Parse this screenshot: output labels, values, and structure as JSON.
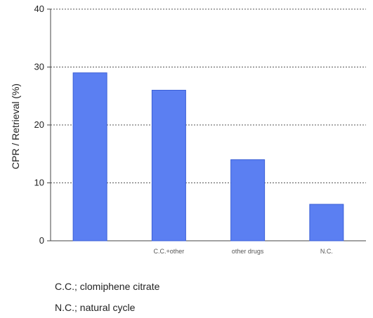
{
  "chart_data": {
    "type": "bar",
    "title": "",
    "xlabel": "",
    "ylabel": "CPR / Retrieval (%)",
    "ylim": [
      0,
      40
    ],
    "yticks": [
      0,
      10,
      20,
      30,
      40
    ],
    "grid": "horizontal dotted",
    "categories": [
      "",
      "C.C.+other",
      "other drugs",
      "N.C."
    ],
    "values": [
      29,
      26,
      14,
      6.3
    ],
    "bar_color": "#5b7ff2"
  },
  "notes": [
    "C.C.; clomiphene citrate",
    "N.C.; natural cycle"
  ]
}
